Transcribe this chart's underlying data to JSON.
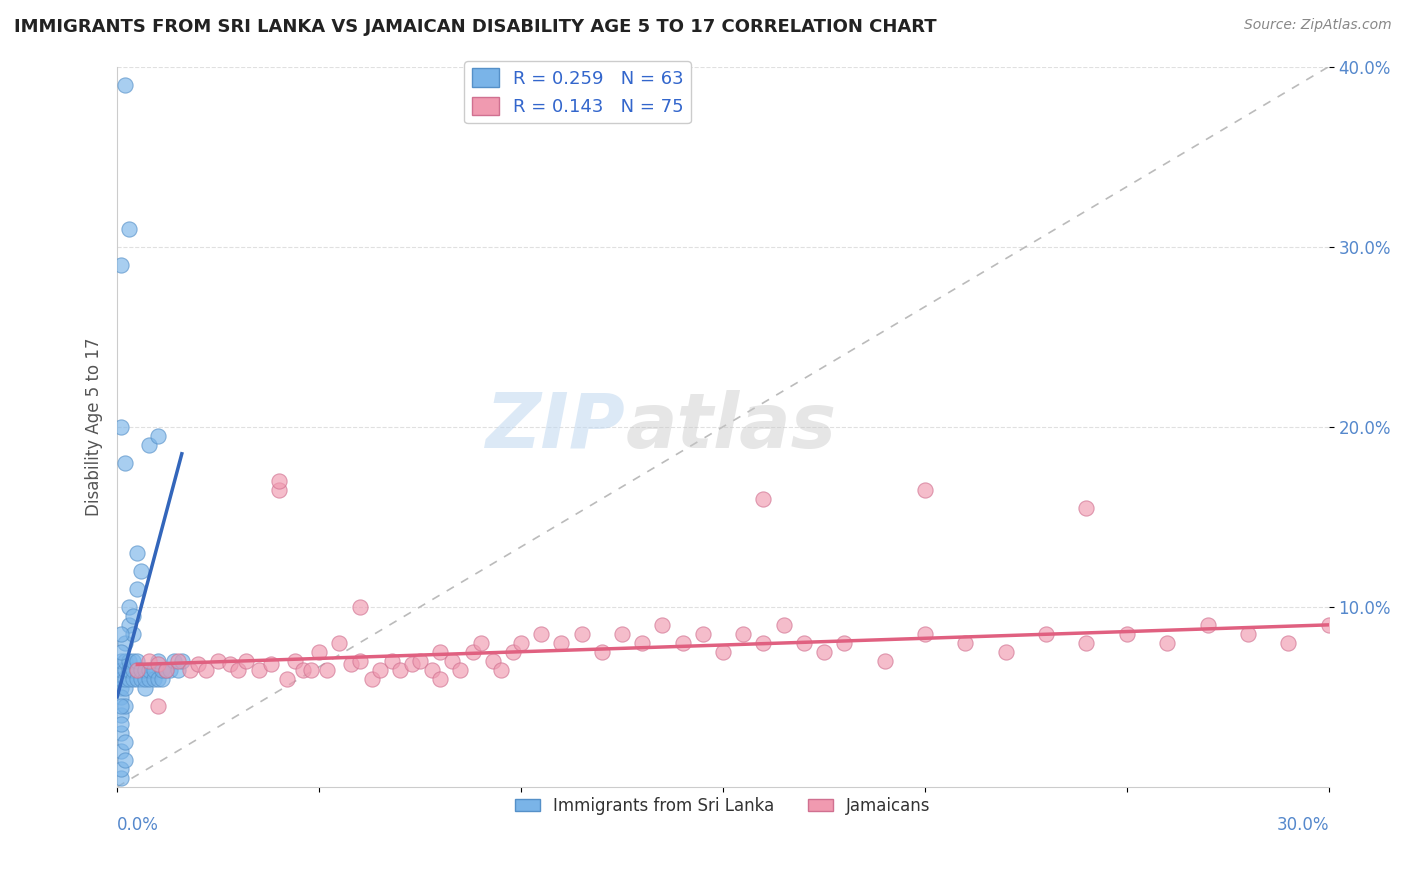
{
  "title": "IMMIGRANTS FROM SRI LANKA VS JAMAICAN DISABILITY AGE 5 TO 17 CORRELATION CHART",
  "source": "Source: ZipAtlas.com",
  "ylabel": "Disability Age 5 to 17",
  "xlim": [
    0.0,
    0.3
  ],
  "ylim": [
    0.0,
    0.4
  ],
  "yticks": [
    0.1,
    0.2,
    0.3,
    0.4
  ],
  "ytick_labels": [
    "10.0%",
    "20.0%",
    "30.0%",
    "40.0%"
  ],
  "xticks": [
    0.0,
    0.05,
    0.1,
    0.15,
    0.2,
    0.25,
    0.3
  ],
  "sri_lanka_color": "#7ab4e8",
  "sri_lanka_edge": "#5590c8",
  "sri_lanka_line": "#3366bb",
  "jamaicans_color": "#f09ab0",
  "jamaicans_edge": "#d07090",
  "jamaicans_line": "#e06080",
  "diag_color": "#bbbbbb",
  "background": "#ffffff",
  "grid_color": "#e0e0e0",
  "sri_lanka_x": [
    0.001,
    0.001,
    0.001,
    0.001,
    0.001,
    0.002,
    0.002,
    0.002,
    0.002,
    0.003,
    0.003,
    0.003,
    0.004,
    0.004,
    0.004,
    0.005,
    0.005,
    0.005,
    0.006,
    0.006,
    0.007,
    0.007,
    0.007,
    0.008,
    0.008,
    0.009,
    0.009,
    0.01,
    0.01,
    0.011,
    0.011,
    0.012,
    0.013,
    0.014,
    0.015,
    0.016,
    0.001,
    0.001,
    0.001,
    0.002,
    0.002,
    0.003,
    0.003,
    0.004,
    0.004,
    0.005,
    0.006,
    0.001,
    0.001,
    0.002,
    0.002,
    0.001,
    0.001,
    0.002,
    0.001,
    0.001,
    0.001,
    0.001,
    0.005,
    0.008,
    0.01,
    0.003,
    0.002
  ],
  "sri_lanka_y": [
    0.055,
    0.06,
    0.065,
    0.07,
    0.05,
    0.055,
    0.06,
    0.065,
    0.07,
    0.06,
    0.065,
    0.07,
    0.06,
    0.065,
    0.07,
    0.06,
    0.065,
    0.07,
    0.06,
    0.065,
    0.055,
    0.06,
    0.065,
    0.06,
    0.065,
    0.06,
    0.065,
    0.06,
    0.07,
    0.06,
    0.065,
    0.065,
    0.065,
    0.07,
    0.065,
    0.07,
    0.02,
    0.03,
    0.04,
    0.045,
    0.08,
    0.09,
    0.1,
    0.085,
    0.095,
    0.11,
    0.12,
    0.005,
    0.01,
    0.015,
    0.025,
    0.2,
    0.29,
    0.18,
    0.045,
    0.035,
    0.075,
    0.085,
    0.13,
    0.19,
    0.195,
    0.31,
    0.39
  ],
  "jamaicans_x": [
    0.005,
    0.008,
    0.01,
    0.012,
    0.015,
    0.018,
    0.02,
    0.022,
    0.025,
    0.028,
    0.03,
    0.032,
    0.035,
    0.038,
    0.04,
    0.042,
    0.044,
    0.046,
    0.048,
    0.05,
    0.052,
    0.055,
    0.058,
    0.06,
    0.063,
    0.065,
    0.068,
    0.07,
    0.073,
    0.075,
    0.078,
    0.08,
    0.083,
    0.085,
    0.088,
    0.09,
    0.093,
    0.095,
    0.098,
    0.1,
    0.105,
    0.11,
    0.115,
    0.12,
    0.125,
    0.13,
    0.135,
    0.14,
    0.145,
    0.15,
    0.155,
    0.16,
    0.165,
    0.17,
    0.175,
    0.18,
    0.19,
    0.2,
    0.21,
    0.22,
    0.23,
    0.24,
    0.25,
    0.26,
    0.27,
    0.28,
    0.29,
    0.3,
    0.04,
    0.06,
    0.08,
    0.16,
    0.2,
    0.24,
    0.01
  ],
  "jamaicans_y": [
    0.065,
    0.07,
    0.068,
    0.065,
    0.07,
    0.065,
    0.068,
    0.065,
    0.07,
    0.068,
    0.065,
    0.07,
    0.065,
    0.068,
    0.165,
    0.06,
    0.07,
    0.065,
    0.065,
    0.075,
    0.065,
    0.08,
    0.068,
    0.07,
    0.06,
    0.065,
    0.07,
    0.065,
    0.068,
    0.07,
    0.065,
    0.075,
    0.07,
    0.065,
    0.075,
    0.08,
    0.07,
    0.065,
    0.075,
    0.08,
    0.085,
    0.08,
    0.085,
    0.075,
    0.085,
    0.08,
    0.09,
    0.08,
    0.085,
    0.075,
    0.085,
    0.08,
    0.09,
    0.08,
    0.075,
    0.08,
    0.07,
    0.085,
    0.08,
    0.075,
    0.085,
    0.08,
    0.085,
    0.08,
    0.09,
    0.085,
    0.08,
    0.09,
    0.17,
    0.1,
    0.06,
    0.16,
    0.165,
    0.155,
    0.045
  ],
  "sl_trend_x": [
    0.0,
    0.016
  ],
  "sl_trend_y": [
    0.05,
    0.185
  ],
  "jm_trend_x": [
    0.005,
    0.3
  ],
  "jm_trend_y": [
    0.068,
    0.09
  ]
}
